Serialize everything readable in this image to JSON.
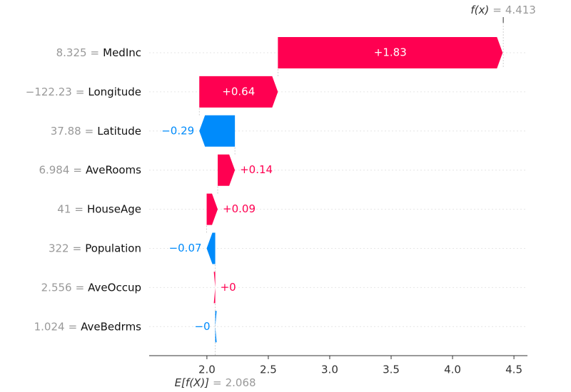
{
  "chart_data": {
    "type": "waterfall",
    "features": [
      "MedInc",
      "Longitude",
      "Latitude",
      "AveRooms",
      "HouseAge",
      "Population",
      "AveOccup",
      "AveBedrms"
    ],
    "feature_values": [
      "8.325",
      "−122.23",
      "37.88",
      "6.984",
      "41",
      "322",
      "2.556",
      "1.024"
    ],
    "separator": "=",
    "values": [
      1.83,
      0.64,
      -0.29,
      0.14,
      0.09,
      -0.07,
      0,
      0
    ],
    "value_labels": [
      "+1.83",
      "+0.64",
      "−0.29",
      "+0.14",
      "+0.09",
      "−0.07",
      "+0",
      "−0"
    ],
    "colors": [
      "#ff0051",
      "#ff0051",
      "#008bfb",
      "#ff0051",
      "#ff0051",
      "#008bfb",
      "#ff0051",
      "#008bfb"
    ],
    "base_label": "E[f(X)]",
    "base_value": 2.068,
    "output_label": "f(x)",
    "output_value": 4.413,
    "xlim": [
      1.53,
      4.61
    ],
    "xticks": [
      {
        "value": 2,
        "label": "2.0"
      },
      2.5,
      {
        "value": 3,
        "label": "3.0"
      },
      3.5,
      {
        "value": 4,
        "label": "4.0"
      },
      4.5
    ]
  }
}
